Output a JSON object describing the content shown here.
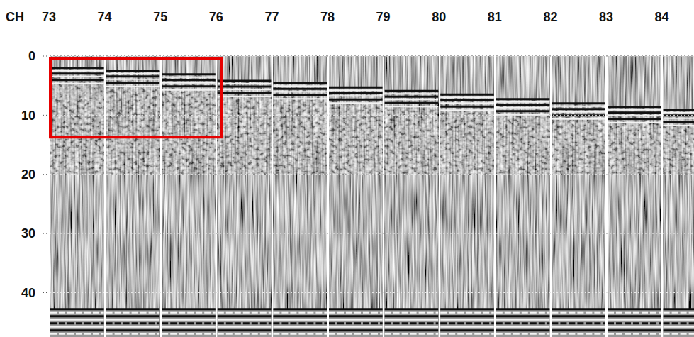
{
  "chart_data": {
    "type": "radargram",
    "x_label": "CH",
    "categories": [
      "73",
      "74",
      "75",
      "76",
      "77",
      "78",
      "79",
      "80",
      "81",
      "82",
      "83",
      "84"
    ],
    "ylim": [
      0,
      47.5
    ],
    "yticks": [
      0,
      10,
      20,
      30,
      40
    ],
    "grid": true,
    "surface_depth": [
      2,
      2.5,
      3.1,
      4.2,
      4.6,
      5.3,
      5.9,
      6.5,
      7.3,
      8,
      8.6,
      9.1
    ],
    "bottom_depth": 42.8,
    "highlight": {
      "categories": [
        "73",
        "75"
      ],
      "depth": [
        0.4,
        13.7
      ],
      "color": "#e60000"
    }
  }
}
